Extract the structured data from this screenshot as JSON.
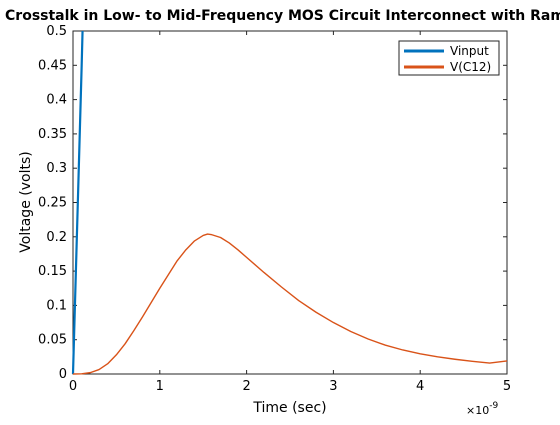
{
  "chart_data": {
    "type": "line",
    "title": "Crosstalk in Low- to Mid-Frequency MOS Circuit Interconnect with Ramp",
    "xlabel": "Time (sec)",
    "ylabel": "Voltage (volts)",
    "x_exponent_label": "×10",
    "x_exponent_power": "-9",
    "xlim": [
      0,
      5
    ],
    "ylim": [
      0,
      0.5
    ],
    "xticks": [
      "0",
      "1",
      "2",
      "3",
      "4",
      "5"
    ],
    "yticks": [
      "0",
      "0.05",
      "0.1",
      "0.15",
      "0.2",
      "0.25",
      "0.3",
      "0.35",
      "0.4",
      "0.45",
      "0.5"
    ],
    "grid": false,
    "legend_location": "top-right",
    "series": [
      {
        "name": "Vinput",
        "color": "#0072BD",
        "x": [
          0,
          0.02,
          0.04,
          0.06,
          0.08,
          0.1,
          0.11
        ],
        "y": [
          0,
          0.09,
          0.18,
          0.27,
          0.36,
          0.45,
          0.5
        ]
      },
      {
        "name": "V(C12)",
        "color": "#D95319",
        "x": [
          0,
          0.1,
          0.2,
          0.3,
          0.4,
          0.5,
          0.6,
          0.7,
          0.8,
          0.9,
          1.0,
          1.1,
          1.2,
          1.3,
          1.4,
          1.5,
          1.55,
          1.6,
          1.7,
          1.8,
          1.9,
          2.0,
          2.2,
          2.4,
          2.6,
          2.8,
          3.0,
          3.2,
          3.4,
          3.6,
          3.8,
          4.0,
          4.2,
          4.4,
          4.6,
          4.8,
          5.0
        ],
        "y": [
          0,
          0.0003,
          0.002,
          0.0065,
          0.015,
          0.028,
          0.044,
          0.063,
          0.083,
          0.104,
          0.125,
          0.145,
          0.165,
          0.181,
          0.194,
          0.202,
          0.204,
          0.203,
          0.199,
          0.191,
          0.181,
          0.17,
          0.148,
          0.127,
          0.107,
          0.09,
          0.075,
          0.062,
          0.051,
          0.042,
          0.035,
          0.0295,
          0.025,
          0.0215,
          0.0185,
          0.016,
          0.019
        ]
      }
    ]
  }
}
